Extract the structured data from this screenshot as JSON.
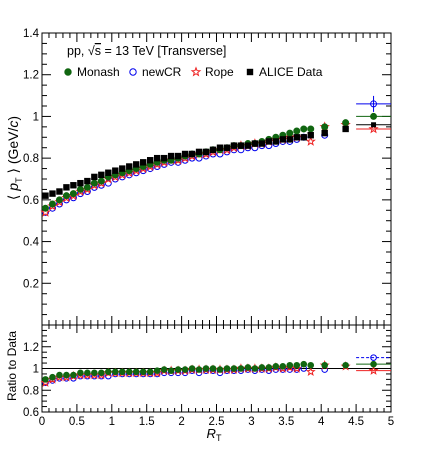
{
  "chart_data": [
    {
      "type": "scatter",
      "title": "",
      "annotation_line1": "pp, √s = 13 TeV [Transverse]",
      "annotation_prefix": "pp, ",
      "annotation_sqrt": "√",
      "annotation_s": "s",
      "annotation_suffix": " = 13 TeV [Transverse]",
      "xlabel": "",
      "ylabel": "⟨ p_T ⟩ (GeV/c)",
      "ylabel_open": "⟨",
      "ylabel_p": "p",
      "ylabel_T": "T",
      "ylabel_close": "⟩",
      "ylabel_unit_open": "(GeV/",
      "ylabel_unit_c": "c",
      "ylabel_unit_close": ")",
      "xlim": [
        0,
        5
      ],
      "ylim": [
        0,
        1.4
      ],
      "y_ticks": [
        "0.2",
        "0.4",
        "0.6",
        "0.8",
        "1",
        "1.2",
        "1.4"
      ],
      "y_tick_values": [
        0.2,
        0.4,
        0.6,
        0.8,
        1.0,
        1.2,
        1.4
      ],
      "legend_position": "top-left",
      "grid": false,
      "series": [
        {
          "name": "Monash",
          "marker": "filled-circle",
          "color": "#116611",
          "x": [
            0.05,
            0.15,
            0.25,
            0.35,
            0.45,
            0.55,
            0.65,
            0.75,
            0.85,
            0.95,
            1.05,
            1.15,
            1.25,
            1.35,
            1.45,
            1.55,
            1.65,
            1.75,
            1.85,
            1.95,
            2.05,
            2.15,
            2.25,
            2.35,
            2.45,
            2.55,
            2.65,
            2.75,
            2.85,
            2.95,
            3.05,
            3.15,
            3.25,
            3.35,
            3.45,
            3.55,
            3.65,
            3.75,
            3.85,
            4.05,
            4.35,
            4.75
          ],
          "y": [
            0.56,
            0.58,
            0.6,
            0.62,
            0.63,
            0.65,
            0.66,
            0.68,
            0.69,
            0.71,
            0.72,
            0.73,
            0.74,
            0.75,
            0.76,
            0.77,
            0.78,
            0.79,
            0.79,
            0.8,
            0.81,
            0.82,
            0.82,
            0.83,
            0.84,
            0.84,
            0.85,
            0.86,
            0.86,
            0.87,
            0.87,
            0.88,
            0.89,
            0.9,
            0.91,
            0.92,
            0.93,
            0.94,
            0.94,
            0.95,
            0.97,
            1.0
          ]
        },
        {
          "name": "newCR",
          "marker": "open-circle",
          "color": "#0000ee",
          "x": [
            0.05,
            0.15,
            0.25,
            0.35,
            0.45,
            0.55,
            0.65,
            0.75,
            0.85,
            0.95,
            1.05,
            1.15,
            1.25,
            1.35,
            1.45,
            1.55,
            1.65,
            1.75,
            1.85,
            1.95,
            2.05,
            2.15,
            2.25,
            2.35,
            2.45,
            2.55,
            2.65,
            2.75,
            2.85,
            2.95,
            3.05,
            3.15,
            3.25,
            3.35,
            3.45,
            3.55,
            3.65,
            3.75,
            4.05,
            4.75
          ],
          "y": [
            0.54,
            0.56,
            0.58,
            0.6,
            0.61,
            0.63,
            0.64,
            0.66,
            0.67,
            0.68,
            0.7,
            0.71,
            0.72,
            0.73,
            0.74,
            0.75,
            0.76,
            0.77,
            0.78,
            0.78,
            0.79,
            0.8,
            0.8,
            0.81,
            0.82,
            0.82,
            0.83,
            0.84,
            0.84,
            0.85,
            0.85,
            0.86,
            0.86,
            0.87,
            0.88,
            0.88,
            0.89,
            0.9,
            0.91,
            1.06
          ]
        },
        {
          "name": "Rope",
          "marker": "open-star",
          "color": "#ee2222",
          "x": [
            0.05,
            0.15,
            0.25,
            0.35,
            0.45,
            0.55,
            0.65,
            0.75,
            0.85,
            0.95,
            1.05,
            1.15,
            1.25,
            1.35,
            1.45,
            1.55,
            1.65,
            1.75,
            1.85,
            1.95,
            2.05,
            2.15,
            2.25,
            2.35,
            2.45,
            2.55,
            2.65,
            2.75,
            2.85,
            2.95,
            3.05,
            3.15,
            3.25,
            3.35,
            3.45,
            3.55,
            3.65,
            3.85,
            4.05,
            4.35,
            4.75
          ],
          "y": [
            0.54,
            0.57,
            0.59,
            0.61,
            0.62,
            0.64,
            0.65,
            0.67,
            0.68,
            0.7,
            0.71,
            0.72,
            0.73,
            0.74,
            0.75,
            0.76,
            0.77,
            0.78,
            0.79,
            0.79,
            0.8,
            0.81,
            0.82,
            0.82,
            0.83,
            0.84,
            0.84,
            0.85,
            0.86,
            0.86,
            0.87,
            0.87,
            0.88,
            0.89,
            0.89,
            0.9,
            0.9,
            0.88,
            0.95,
            0.96,
            0.94
          ]
        },
        {
          "name": "ALICE Data",
          "marker": "filled-square",
          "color": "#000000",
          "x": [
            0.05,
            0.15,
            0.25,
            0.35,
            0.45,
            0.55,
            0.65,
            0.75,
            0.85,
            0.95,
            1.05,
            1.15,
            1.25,
            1.35,
            1.45,
            1.55,
            1.65,
            1.75,
            1.85,
            1.95,
            2.05,
            2.15,
            2.25,
            2.35,
            2.45,
            2.55,
            2.65,
            2.75,
            2.85,
            2.95,
            3.05,
            3.15,
            3.25,
            3.35,
            3.45,
            3.55,
            3.65,
            3.75,
            3.85,
            4.05,
            4.35,
            4.75
          ],
          "y": [
            0.62,
            0.63,
            0.64,
            0.66,
            0.67,
            0.68,
            0.69,
            0.71,
            0.72,
            0.73,
            0.74,
            0.75,
            0.76,
            0.77,
            0.78,
            0.79,
            0.8,
            0.8,
            0.81,
            0.81,
            0.82,
            0.82,
            0.83,
            0.83,
            0.84,
            0.85,
            0.85,
            0.86,
            0.86,
            0.86,
            0.87,
            0.87,
            0.88,
            0.88,
            0.89,
            0.89,
            0.9,
            0.9,
            0.91,
            0.92,
            0.94,
            0.96
          ]
        }
      ]
    },
    {
      "type": "scatter",
      "title": "",
      "ylabel": "Ratio to Data",
      "xlabel": "R_T",
      "xlabel_R": "R",
      "xlabel_T": "T",
      "xlim": [
        0,
        5
      ],
      "ylim": [
        0.6,
        1.4
      ],
      "x_ticks": [
        "0",
        "0.5",
        "1",
        "1.5",
        "2",
        "2.5",
        "3",
        "3.5",
        "4",
        "4.5",
        "5"
      ],
      "x_tick_values": [
        0,
        0.5,
        1,
        1.5,
        2,
        2.5,
        3,
        3.5,
        4,
        4.5,
        5
      ],
      "y_ticks": [
        "0.6",
        "0.8",
        "1",
        "1.2"
      ],
      "y_tick_values": [
        0.6,
        0.8,
        1.0,
        1.2
      ],
      "reference_line": 1.0,
      "series": [
        {
          "name": "Monash",
          "color": "#116611",
          "marker": "filled-circle",
          "x": [
            0.05,
            0.15,
            0.25,
            0.35,
            0.45,
            0.55,
            0.65,
            0.75,
            0.85,
            0.95,
            1.05,
            1.15,
            1.25,
            1.35,
            1.45,
            1.55,
            1.65,
            1.75,
            1.85,
            1.95,
            2.05,
            2.15,
            2.25,
            2.35,
            2.45,
            2.55,
            2.65,
            2.75,
            2.85,
            2.95,
            3.05,
            3.15,
            3.25,
            3.35,
            3.45,
            3.55,
            3.65,
            3.75,
            3.85,
            4.05,
            4.35,
            4.75
          ],
          "y": [
            0.9,
            0.92,
            0.94,
            0.94,
            0.94,
            0.96,
            0.96,
            0.96,
            0.96,
            0.97,
            0.97,
            0.97,
            0.97,
            0.97,
            0.97,
            0.97,
            0.98,
            0.99,
            0.98,
            0.99,
            0.99,
            1.0,
            0.99,
            1.0,
            1.0,
            0.99,
            1.0,
            1.0,
            1.0,
            1.01,
            1.0,
            1.01,
            1.01,
            1.02,
            1.02,
            1.03,
            1.03,
            1.04,
            1.03,
            1.03,
            1.03,
            1.04
          ]
        },
        {
          "name": "newCR",
          "color": "#0000ee",
          "marker": "open-circle",
          "x": [
            0.05,
            0.15,
            0.25,
            0.35,
            0.45,
            0.55,
            0.65,
            0.75,
            0.85,
            0.95,
            1.05,
            1.15,
            1.25,
            1.35,
            1.45,
            1.55,
            1.65,
            1.75,
            1.85,
            1.95,
            2.05,
            2.15,
            2.25,
            2.35,
            2.45,
            2.55,
            2.65,
            2.75,
            2.85,
            2.95,
            3.05,
            3.15,
            3.25,
            3.35,
            3.45,
            3.55,
            3.65,
            3.75,
            4.05,
            4.75
          ],
          "y": [
            0.87,
            0.89,
            0.91,
            0.91,
            0.91,
            0.93,
            0.93,
            0.93,
            0.93,
            0.93,
            0.95,
            0.95,
            0.95,
            0.95,
            0.95,
            0.95,
            0.95,
            0.96,
            0.96,
            0.96,
            0.96,
            0.98,
            0.96,
            0.98,
            0.98,
            0.96,
            0.98,
            0.98,
            0.98,
            0.99,
            0.98,
            0.99,
            0.98,
            0.99,
            0.99,
            0.99,
            0.99,
            1.0,
            0.99,
            1.1
          ]
        },
        {
          "name": "Rope",
          "color": "#ee2222",
          "marker": "open-star",
          "x": [
            0.05,
            0.15,
            0.25,
            0.35,
            0.45,
            0.55,
            0.65,
            0.75,
            0.85,
            0.95,
            1.05,
            1.15,
            1.25,
            1.35,
            1.45,
            1.55,
            1.65,
            1.75,
            1.85,
            1.95,
            2.05,
            2.15,
            2.25,
            2.35,
            2.45,
            2.55,
            2.65,
            2.75,
            2.85,
            2.95,
            3.05,
            3.15,
            3.25,
            3.35,
            3.45,
            3.55,
            3.65,
            3.85,
            4.05,
            4.35,
            4.75
          ],
          "y": [
            0.87,
            0.9,
            0.92,
            0.92,
            0.93,
            0.94,
            0.94,
            0.94,
            0.94,
            0.96,
            0.96,
            0.96,
            0.96,
            0.96,
            0.96,
            0.96,
            0.96,
            0.98,
            0.98,
            0.98,
            0.98,
            0.99,
            0.99,
            0.99,
            0.99,
            0.99,
            0.99,
            0.99,
            1.0,
            1.0,
            1.0,
            1.0,
            1.0,
            1.01,
            1.0,
            1.01,
            1.0,
            0.97,
            1.03,
            1.02,
            0.98
          ]
        }
      ]
    }
  ]
}
